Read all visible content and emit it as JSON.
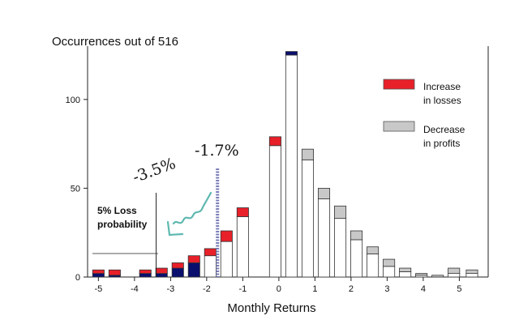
{
  "chart_data": {
    "type": "bar",
    "title": "Occurrences out of 516",
    "xlabel": "Monthly Returns",
    "ylabel": "",
    "xlim": [
      -5.3,
      5.8
    ],
    "ylim": [
      0,
      130
    ],
    "yticks": [
      0,
      50,
      100
    ],
    "xtick_labels": [
      "-5",
      "-4",
      "-3",
      "-2",
      "-1",
      "0",
      "1",
      "2",
      "3",
      "4",
      "5"
    ],
    "bar_width": 0.32,
    "bars": [
      {
        "x": -5.0,
        "white": 0,
        "navy": 2,
        "red": 2,
        "gray": 0
      },
      {
        "x": -4.55,
        "white": 0,
        "navy": 1,
        "red": 3,
        "gray": 0
      },
      {
        "x": -3.7,
        "white": 0,
        "navy": 2,
        "red": 2,
        "gray": 0
      },
      {
        "x": -3.25,
        "white": 0,
        "navy": 2,
        "red": 3,
        "gray": 0
      },
      {
        "x": -2.8,
        "white": 0,
        "navy": 5,
        "red": 3,
        "gray": 0
      },
      {
        "x": -2.35,
        "white": 0,
        "navy": 8,
        "red": 4,
        "gray": 0
      },
      {
        "x": -1.9,
        "white": 12,
        "navy": 0,
        "red": 4,
        "gray": 0
      },
      {
        "x": -1.45,
        "white": 20,
        "navy": 0,
        "red": 6,
        "gray": 0
      },
      {
        "x": -1.0,
        "white": 34,
        "navy": 0,
        "red": 5,
        "gray": 0
      },
      {
        "x": -0.1,
        "white": 74,
        "navy": 0,
        "red": 5,
        "gray": 0
      },
      {
        "x": 0.35,
        "white": 125,
        "navy": 2,
        "red": 0,
        "gray": 0
      },
      {
        "x": 0.8,
        "white": 66,
        "navy": 0,
        "red": 0,
        "gray": 6
      },
      {
        "x": 1.25,
        "white": 44,
        "navy": 0,
        "red": 0,
        "gray": 6
      },
      {
        "x": 1.7,
        "white": 33,
        "navy": 0,
        "red": 0,
        "gray": 7
      },
      {
        "x": 2.15,
        "white": 21,
        "navy": 0,
        "red": 0,
        "gray": 5
      },
      {
        "x": 2.6,
        "white": 13,
        "navy": 0,
        "red": 0,
        "gray": 4
      },
      {
        "x": 3.05,
        "white": 6,
        "navy": 0,
        "red": 0,
        "gray": 4
      },
      {
        "x": 3.5,
        "white": 3,
        "navy": 0,
        "red": 0,
        "gray": 2
      },
      {
        "x": 3.95,
        "white": 1,
        "navy": 0,
        "red": 0,
        "gray": 1
      },
      {
        "x": 4.4,
        "white": 0,
        "navy": 0,
        "red": 0,
        "gray": 1
      },
      {
        "x": 4.85,
        "white": 2,
        "navy": 0,
        "red": 0,
        "gray": 3
      },
      {
        "x": 5.35,
        "white": 2,
        "navy": 0,
        "red": 0,
        "gray": 2
      }
    ],
    "legend": [
      {
        "label_line1": "Increase",
        "label_line2": "in losses",
        "color": "#e8202a"
      },
      {
        "label_line1": "Decrease",
        "label_line2": "in profits",
        "color": "#c8c8c8"
      }
    ],
    "annotations": {
      "loss_text_line1": "5% Loss",
      "loss_text_line2": "probability",
      "hand_label_a": "-3.5%",
      "hand_label_b": "-1.7%",
      "cutoff_line_x": -3.4,
      "highlight_line_x": -1.7
    }
  },
  "colors": {
    "red": "#e8202a",
    "navy": "#0a0f6e",
    "gray": "#c8c8c8",
    "highlight": "#6c6fb0",
    "squiggle": "#5fb8b0"
  }
}
